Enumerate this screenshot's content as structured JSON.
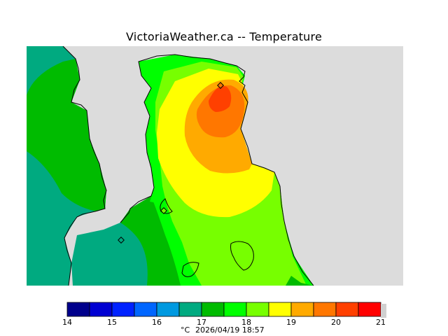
{
  "title": "VictoriaWeather.ca -- Temperature",
  "legend": {
    "ticks": [
      "14",
      "15",
      "16",
      "17",
      "18",
      "19",
      "20",
      "21"
    ],
    "unit": "°C",
    "timestamp": "2026/04/19 18:57",
    "colors": [
      "#00008c",
      "#0000d2",
      "#0022ff",
      "#0066ff",
      "#0099e0",
      "#00aa80",
      "#00bb00",
      "#00ff00",
      "#77ff00",
      "#ffff00",
      "#ffaa00",
      "#ff7700",
      "#ff4000",
      "#ff0000"
    ]
  },
  "map": {
    "land_color": "#dcdcdc",
    "outline_color": "#000000"
  }
}
